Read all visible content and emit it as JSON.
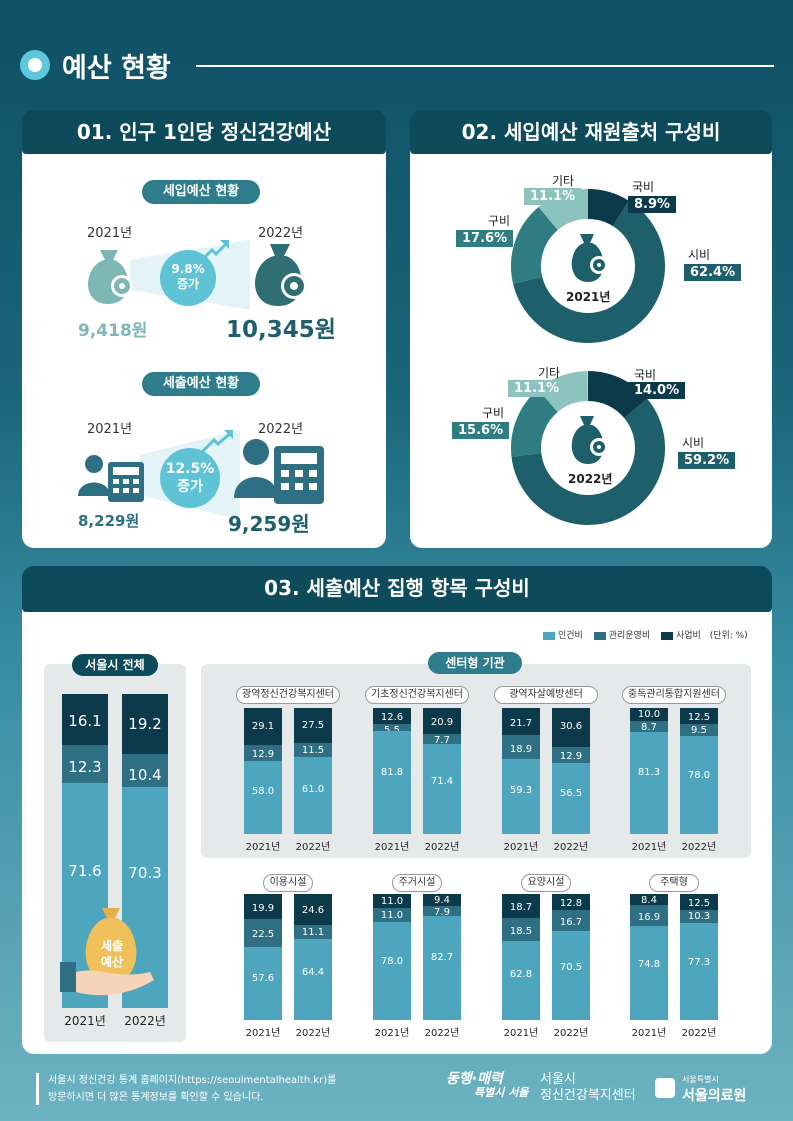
{
  "header": {
    "title": "예산 현황"
  },
  "section1": {
    "title": "01. 인구 1인당 정신건강예산",
    "income": {
      "label": "세입예산 현황",
      "year1": "2021년",
      "year2": "2022년",
      "value1": "9,418원",
      "value2": "10,345원",
      "growth": "9.8%",
      "growth_word": "증가"
    },
    "expense": {
      "label": "세출예산 현황",
      "year1": "2021년",
      "year2": "2022년",
      "value1": "8,229원",
      "value2": "9,259원",
      "growth": "12.5%",
      "growth_word": "증가"
    }
  },
  "section2": {
    "title": "02. 세입예산 재원출처 구성비",
    "donut2021": {
      "year": "2021년",
      "labels": {
        "etc": "기타",
        "gu": "구비",
        "national": "국비",
        "city": "시비"
      },
      "values": {
        "national": "8.9%",
        "city": "62.4%",
        "gu": "17.6%",
        "etc": "11.1%"
      }
    },
    "donut2022": {
      "year": "2022년",
      "labels": {
        "etc": "기타",
        "gu": "구비",
        "national": "국비",
        "city": "시비"
      },
      "values": {
        "national": "14.0%",
        "city": "59.2%",
        "gu": "15.6%",
        "etc": "11.1%"
      }
    }
  },
  "section3": {
    "title": "03. 세출예산 집행 항목 구성비",
    "legend": {
      "personnel": "인건비",
      "operation": "관리운영비",
      "project": "사업비",
      "unit": "(단위: %)"
    },
    "colors": {
      "personnel": "#4ea6be",
      "operation": "#2f6f84",
      "project": "#0c3a4a"
    },
    "overall": {
      "label": "서울시 전체",
      "bag_text1": "세출",
      "bag_text2": "예산",
      "bars": [
        {
          "year": "2021년",
          "personnel": "71.6",
          "operation": "12.3",
          "project": "16.1"
        },
        {
          "year": "2022년",
          "personnel": "70.3",
          "operation": "10.4",
          "project": "19.2"
        }
      ]
    },
    "center_label": "센터형 기관",
    "groups": [
      {
        "name": "광역정신건강복지센터",
        "bars": [
          {
            "year": "2021년",
            "p": "58.0",
            "o": "12.9",
            "s": "29.1"
          },
          {
            "year": "2022년",
            "p": "61.0",
            "o": "11.5",
            "s": "27.5"
          }
        ]
      },
      {
        "name": "기초정신건강복지센터",
        "bars": [
          {
            "year": "2021년",
            "p": "81.8",
            "o": "5.5",
            "s": "12.6"
          },
          {
            "year": "2022년",
            "p": "71.4",
            "o": "7.7",
            "s": "20.9"
          }
        ]
      },
      {
        "name": "광역자살예방센터",
        "bars": [
          {
            "year": "2021년",
            "p": "59.3",
            "o": "18.9",
            "s": "21.7"
          },
          {
            "year": "2022년",
            "p": "56.5",
            "o": "12.9",
            "s": "30.6"
          }
        ]
      },
      {
        "name": "중독관리통합지원센터",
        "bars": [
          {
            "year": "2021년",
            "p": "81.3",
            "o": "8.7",
            "s": "10.0"
          },
          {
            "year": "2022년",
            "p": "78.0",
            "o": "9.5",
            "s": "12.5"
          }
        ]
      },
      {
        "name": "이용시설",
        "bars": [
          {
            "year": "2021년",
            "p": "57.6",
            "o": "22.5",
            "s": "19.9"
          },
          {
            "year": "2022년",
            "p": "64.4",
            "o": "11.1",
            "s": "24.6"
          }
        ]
      },
      {
        "name": "주거시설",
        "bars": [
          {
            "year": "2021년",
            "p": "78.0",
            "o": "11.0",
            "s": "11.0"
          },
          {
            "year": "2022년",
            "p": "82.7",
            "o": "7.9",
            "s": "9.4"
          }
        ]
      },
      {
        "name": "요양시설",
        "bars": [
          {
            "year": "2021년",
            "p": "62.8",
            "o": "18.5",
            "s": "18.7"
          },
          {
            "year": "2022년",
            "p": "70.5",
            "o": "16.7",
            "s": "12.8"
          }
        ]
      },
      {
        "name": "주택형",
        "bars": [
          {
            "year": "2021년",
            "p": "74.8",
            "o": "16.9",
            "s": "8.4"
          },
          {
            "year": "2022년",
            "p": "77.3",
            "o": "10.3",
            "s": "12.5"
          }
        ]
      }
    ]
  },
  "footer": {
    "line1": "서울시 정신건강 통계 홈페이지(https://seoulmentalhealth.kr)를",
    "line2": "방문하시면 더 많은 통계정보를 확인할 수 있습니다.",
    "logo1_a": "동행·매력",
    "logo1_b": "특별시 서울",
    "logo2_a": "서울시",
    "logo2_b": "정신건강복지센터",
    "logo3_a": "서울특별시",
    "logo3_b": "서울의료원"
  }
}
